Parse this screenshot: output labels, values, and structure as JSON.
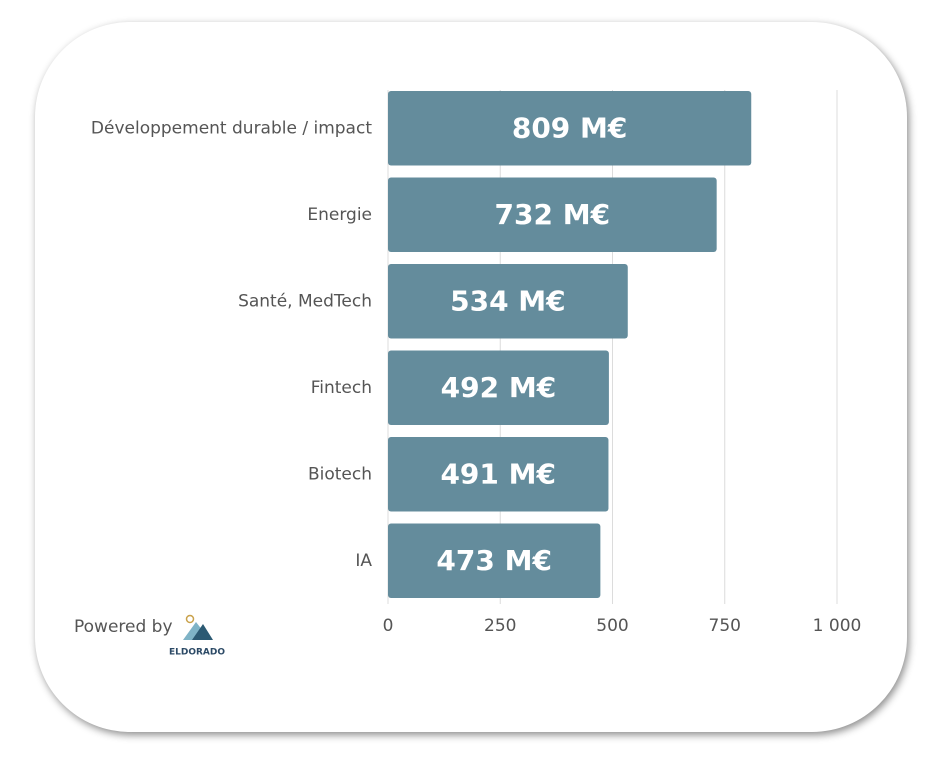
{
  "chart_data": {
    "type": "bar",
    "orientation": "horizontal",
    "categories": [
      "Développement durable / impact",
      "Energie",
      "Santé, MedTech",
      "Fintech",
      "Biotech",
      "IA"
    ],
    "values": [
      809,
      732,
      534,
      492,
      491,
      473
    ],
    "value_labels": [
      "809 M€",
      "732 M€",
      "534 M€",
      "492 M€",
      "491 M€",
      "473 M€"
    ],
    "color": "#648c9c",
    "xlim": [
      0,
      1000
    ],
    "xticks": [
      0,
      250,
      500,
      750,
      {
        "value": 1000,
        "label": "1 000"
      }
    ],
    "grid": true
  },
  "footer": {
    "text": "Powered by",
    "brand": "ELDORADO"
  }
}
